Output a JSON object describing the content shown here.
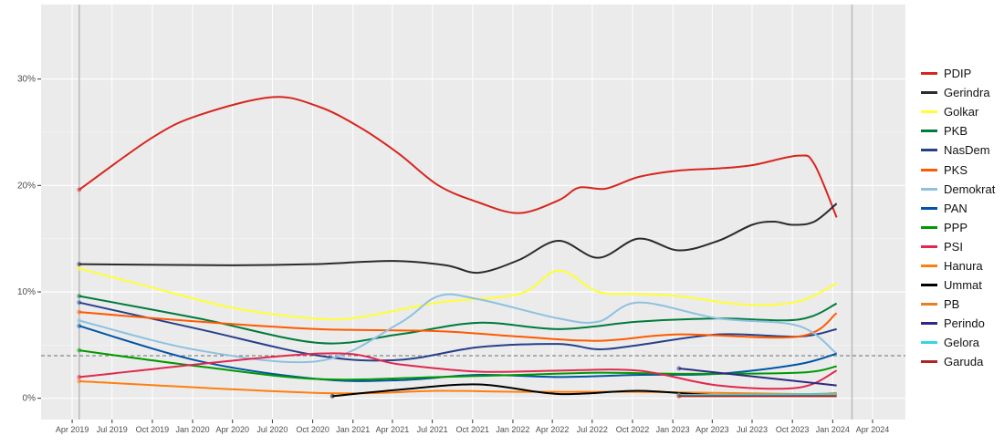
{
  "chart_data": {
    "type": "line",
    "title": "",
    "xlabel": "",
    "ylabel": "",
    "x_ticks": [
      "Apr 2019",
      "Jul 2019",
      "Oct 2019",
      "Jan 2020",
      "Apr 2020",
      "Jul 2020",
      "Oct 2020",
      "Jan 2021",
      "Apr 2021",
      "Jul 2021",
      "Oct 2021",
      "Jan 2022",
      "Apr 2022",
      "Jul 2022",
      "Oct 2022",
      "Jan 2023",
      "Apr 2023",
      "Jul 2023",
      "Oct 2023",
      "Jan 2024",
      "Apr 2024"
    ],
    "y_ticks": [
      "0%",
      "10%",
      "20%",
      "30%"
    ],
    "ylim": [
      -2,
      37
    ],
    "xlim": [
      "2019-01-20",
      "2024-06-15"
    ],
    "grid": true,
    "legend_position": "right",
    "threshold_line": 4,
    "vertical_lines": [
      "2019-04-17",
      "2024-02-14"
    ],
    "series": [
      {
        "name": "PDIP",
        "color": "#d7261e",
        "points": [
          [
            "2019-04-17",
            19.6
          ],
          [
            "2019-10-01",
            24.5
          ],
          [
            "2020-01-15",
            26.6
          ],
          [
            "2020-07-01",
            28.3
          ],
          [
            "2020-10-15",
            27.4
          ],
          [
            "2021-01-15",
            25.5
          ],
          [
            "2021-04-15",
            23
          ],
          [
            "2021-07-15",
            20
          ],
          [
            "2021-10-15",
            18.4
          ],
          [
            "2022-01-15",
            17.4
          ],
          [
            "2022-04-15",
            18.6
          ],
          [
            "2022-06-01",
            19.8
          ],
          [
            "2022-08-01",
            19.7
          ],
          [
            "2022-10-15",
            20.8
          ],
          [
            "2023-01-15",
            21.4
          ],
          [
            "2023-04-15",
            21.6
          ],
          [
            "2023-07-01",
            21.9
          ],
          [
            "2023-10-15",
            22.8
          ],
          [
            "2023-11-20",
            22
          ],
          [
            "2024-01-10",
            17.0
          ]
        ]
      },
      {
        "name": "Gerindra",
        "color": "#2b2b2b",
        "points": [
          [
            "2019-04-17",
            12.6
          ],
          [
            "2020-04-01",
            12.5
          ],
          [
            "2020-10-01",
            12.6
          ],
          [
            "2021-04-01",
            12.9
          ],
          [
            "2021-08-01",
            12.5
          ],
          [
            "2021-10-15",
            11.8
          ],
          [
            "2022-01-15",
            13
          ],
          [
            "2022-04-15",
            14.8
          ],
          [
            "2022-07-15",
            13.2
          ],
          [
            "2022-10-15",
            15
          ],
          [
            "2023-01-15",
            13.9
          ],
          [
            "2023-04-15",
            14.8
          ],
          [
            "2023-07-01",
            16.3
          ],
          [
            "2023-08-20",
            16.6
          ],
          [
            "2023-10-01",
            16.3
          ],
          [
            "2023-11-20",
            16.6
          ],
          [
            "2024-01-10",
            18.3
          ]
        ]
      },
      {
        "name": "Golkar",
        "color": "#ffff33",
        "points": [
          [
            "2019-04-17",
            12.2
          ],
          [
            "2019-10-01",
            10.4
          ],
          [
            "2020-04-01",
            8.5
          ],
          [
            "2020-10-01",
            7.5
          ],
          [
            "2021-01-15",
            7.6
          ],
          [
            "2021-07-15",
            9
          ],
          [
            "2022-01-15",
            9.8
          ],
          [
            "2022-04-15",
            12
          ],
          [
            "2022-07-15",
            10
          ],
          [
            "2022-10-15",
            9.8
          ],
          [
            "2023-01-15",
            9.6
          ],
          [
            "2023-06-15",
            8.8
          ],
          [
            "2023-10-15",
            9.1
          ],
          [
            "2024-01-10",
            10.8
          ]
        ]
      },
      {
        "name": "PKB",
        "color": "#007a3d",
        "points": [
          [
            "2019-04-17",
            9.6
          ],
          [
            "2020-01-15",
            7.5
          ],
          [
            "2020-10-15",
            5.2
          ],
          [
            "2021-04-15",
            6
          ],
          [
            "2021-10-15",
            7.1
          ],
          [
            "2022-04-15",
            6.5
          ],
          [
            "2022-10-15",
            7.2
          ],
          [
            "2023-04-15",
            7.5
          ],
          [
            "2023-10-15",
            7.4
          ],
          [
            "2024-01-10",
            8.9
          ]
        ]
      },
      {
        "name": "NasDem",
        "color": "#27408b",
        "points": [
          [
            "2019-04-17",
            9.0
          ],
          [
            "2020-01-15",
            6.5
          ],
          [
            "2020-10-15",
            4.0
          ],
          [
            "2021-04-15",
            3.6
          ],
          [
            "2021-10-15",
            4.8
          ],
          [
            "2022-04-15",
            5.1
          ],
          [
            "2022-07-15",
            4.6
          ],
          [
            "2022-10-15",
            5.0
          ],
          [
            "2023-04-15",
            6.0
          ],
          [
            "2023-10-15",
            5.8
          ],
          [
            "2024-01-10",
            6.5
          ]
        ]
      },
      {
        "name": "PKS",
        "color": "#ff5a00",
        "points": [
          [
            "2019-04-17",
            8.1
          ],
          [
            "2020-01-15",
            7.2
          ],
          [
            "2020-10-15",
            6.5
          ],
          [
            "2021-07-15",
            6.3
          ],
          [
            "2022-01-15",
            5.8
          ],
          [
            "2022-07-15",
            5.4
          ],
          [
            "2023-01-15",
            6.0
          ],
          [
            "2023-10-15",
            5.8
          ],
          [
            "2024-01-10",
            8.0
          ]
        ]
      },
      {
        "name": "Demokrat",
        "color": "#8ec1e0",
        "points": [
          [
            "2019-04-17",
            7.3
          ],
          [
            "2020-01-15",
            4.5
          ],
          [
            "2020-10-15",
            3.5
          ],
          [
            "2021-04-15",
            7
          ],
          [
            "2021-07-15",
            9.6
          ],
          [
            "2021-10-15",
            9.3
          ],
          [
            "2022-04-15",
            7.5
          ],
          [
            "2022-07-15",
            7.2
          ],
          [
            "2022-10-15",
            9
          ],
          [
            "2023-04-15",
            7.5
          ],
          [
            "2023-10-15",
            6.8
          ],
          [
            "2024-01-10",
            4.2
          ]
        ]
      },
      {
        "name": "PAN",
        "color": "#0055a5",
        "points": [
          [
            "2019-04-17",
            6.8
          ],
          [
            "2020-01-15",
            3.5
          ],
          [
            "2020-10-15",
            1.8
          ],
          [
            "2021-04-15",
            1.7
          ],
          [
            "2021-10-15",
            2.2
          ],
          [
            "2022-04-15",
            2.0
          ],
          [
            "2022-10-15",
            2.2
          ],
          [
            "2023-04-15",
            2.3
          ],
          [
            "2023-10-15",
            3.2
          ],
          [
            "2024-01-10",
            4.2
          ]
        ]
      },
      {
        "name": "PPP",
        "color": "#009900",
        "points": [
          [
            "2019-04-17",
            4.5
          ],
          [
            "2020-01-15",
            3.0
          ],
          [
            "2020-10-15",
            1.8
          ],
          [
            "2021-07-15",
            2.0
          ],
          [
            "2022-01-15",
            2.2
          ],
          [
            "2022-07-15",
            2.4
          ],
          [
            "2023-01-15",
            2.3
          ],
          [
            "2023-10-15",
            2.4
          ],
          [
            "2024-01-10",
            3.0
          ]
        ]
      },
      {
        "name": "PSI",
        "color": "#e0284f",
        "points": [
          [
            "2019-04-17",
            2.0
          ],
          [
            "2020-10-15",
            4.2
          ],
          [
            "2021-04-15",
            3.2
          ],
          [
            "2021-10-15",
            2.5
          ],
          [
            "2022-04-15",
            2.6
          ],
          [
            "2022-10-15",
            2.6
          ],
          [
            "2023-04-15",
            1.2
          ],
          [
            "2023-10-15",
            1.0
          ],
          [
            "2024-01-10",
            2.6
          ]
        ]
      },
      {
        "name": "Hanura",
        "color": "#ff7f0e",
        "points": [
          [
            "2019-04-17",
            1.6
          ],
          [
            "2020-10-15",
            0.5
          ],
          [
            "2021-07-15",
            0.7
          ],
          [
            "2022-01-15",
            0.6
          ],
          [
            "2022-10-15",
            0.6
          ],
          [
            "2023-10-15",
            0.4
          ],
          [
            "2024-01-10",
            0.5
          ]
        ]
      },
      {
        "name": "Ummat",
        "color": "#000000",
        "points": [
          [
            "2020-11-15",
            0.2
          ],
          [
            "2021-04-15",
            0.8
          ],
          [
            "2021-10-15",
            1.3
          ],
          [
            "2022-04-15",
            0.4
          ],
          [
            "2022-10-15",
            0.7
          ],
          [
            "2023-04-15",
            0.3
          ],
          [
            "2024-01-10",
            0.4
          ]
        ]
      },
      {
        "name": "PB",
        "color": "#e67e22",
        "points": [
          [
            "2023-01-15",
            0.3
          ],
          [
            "2024-01-10",
            0.3
          ]
        ]
      },
      {
        "name": "Perindo",
        "color": "#2e2a80",
        "points": [
          [
            "2023-01-15",
            2.8
          ],
          [
            "2023-07-15",
            2.0
          ],
          [
            "2024-01-10",
            1.2
          ]
        ]
      },
      {
        "name": "Gelora",
        "color": "#33d6e0",
        "points": [
          [
            "2023-01-15",
            0.3
          ],
          [
            "2024-01-10",
            0.4
          ]
        ]
      },
      {
        "name": "Garuda",
        "color": "#b22222",
        "points": [
          [
            "2023-01-15",
            0.2
          ],
          [
            "2024-01-10",
            0.2
          ]
        ]
      }
    ]
  }
}
